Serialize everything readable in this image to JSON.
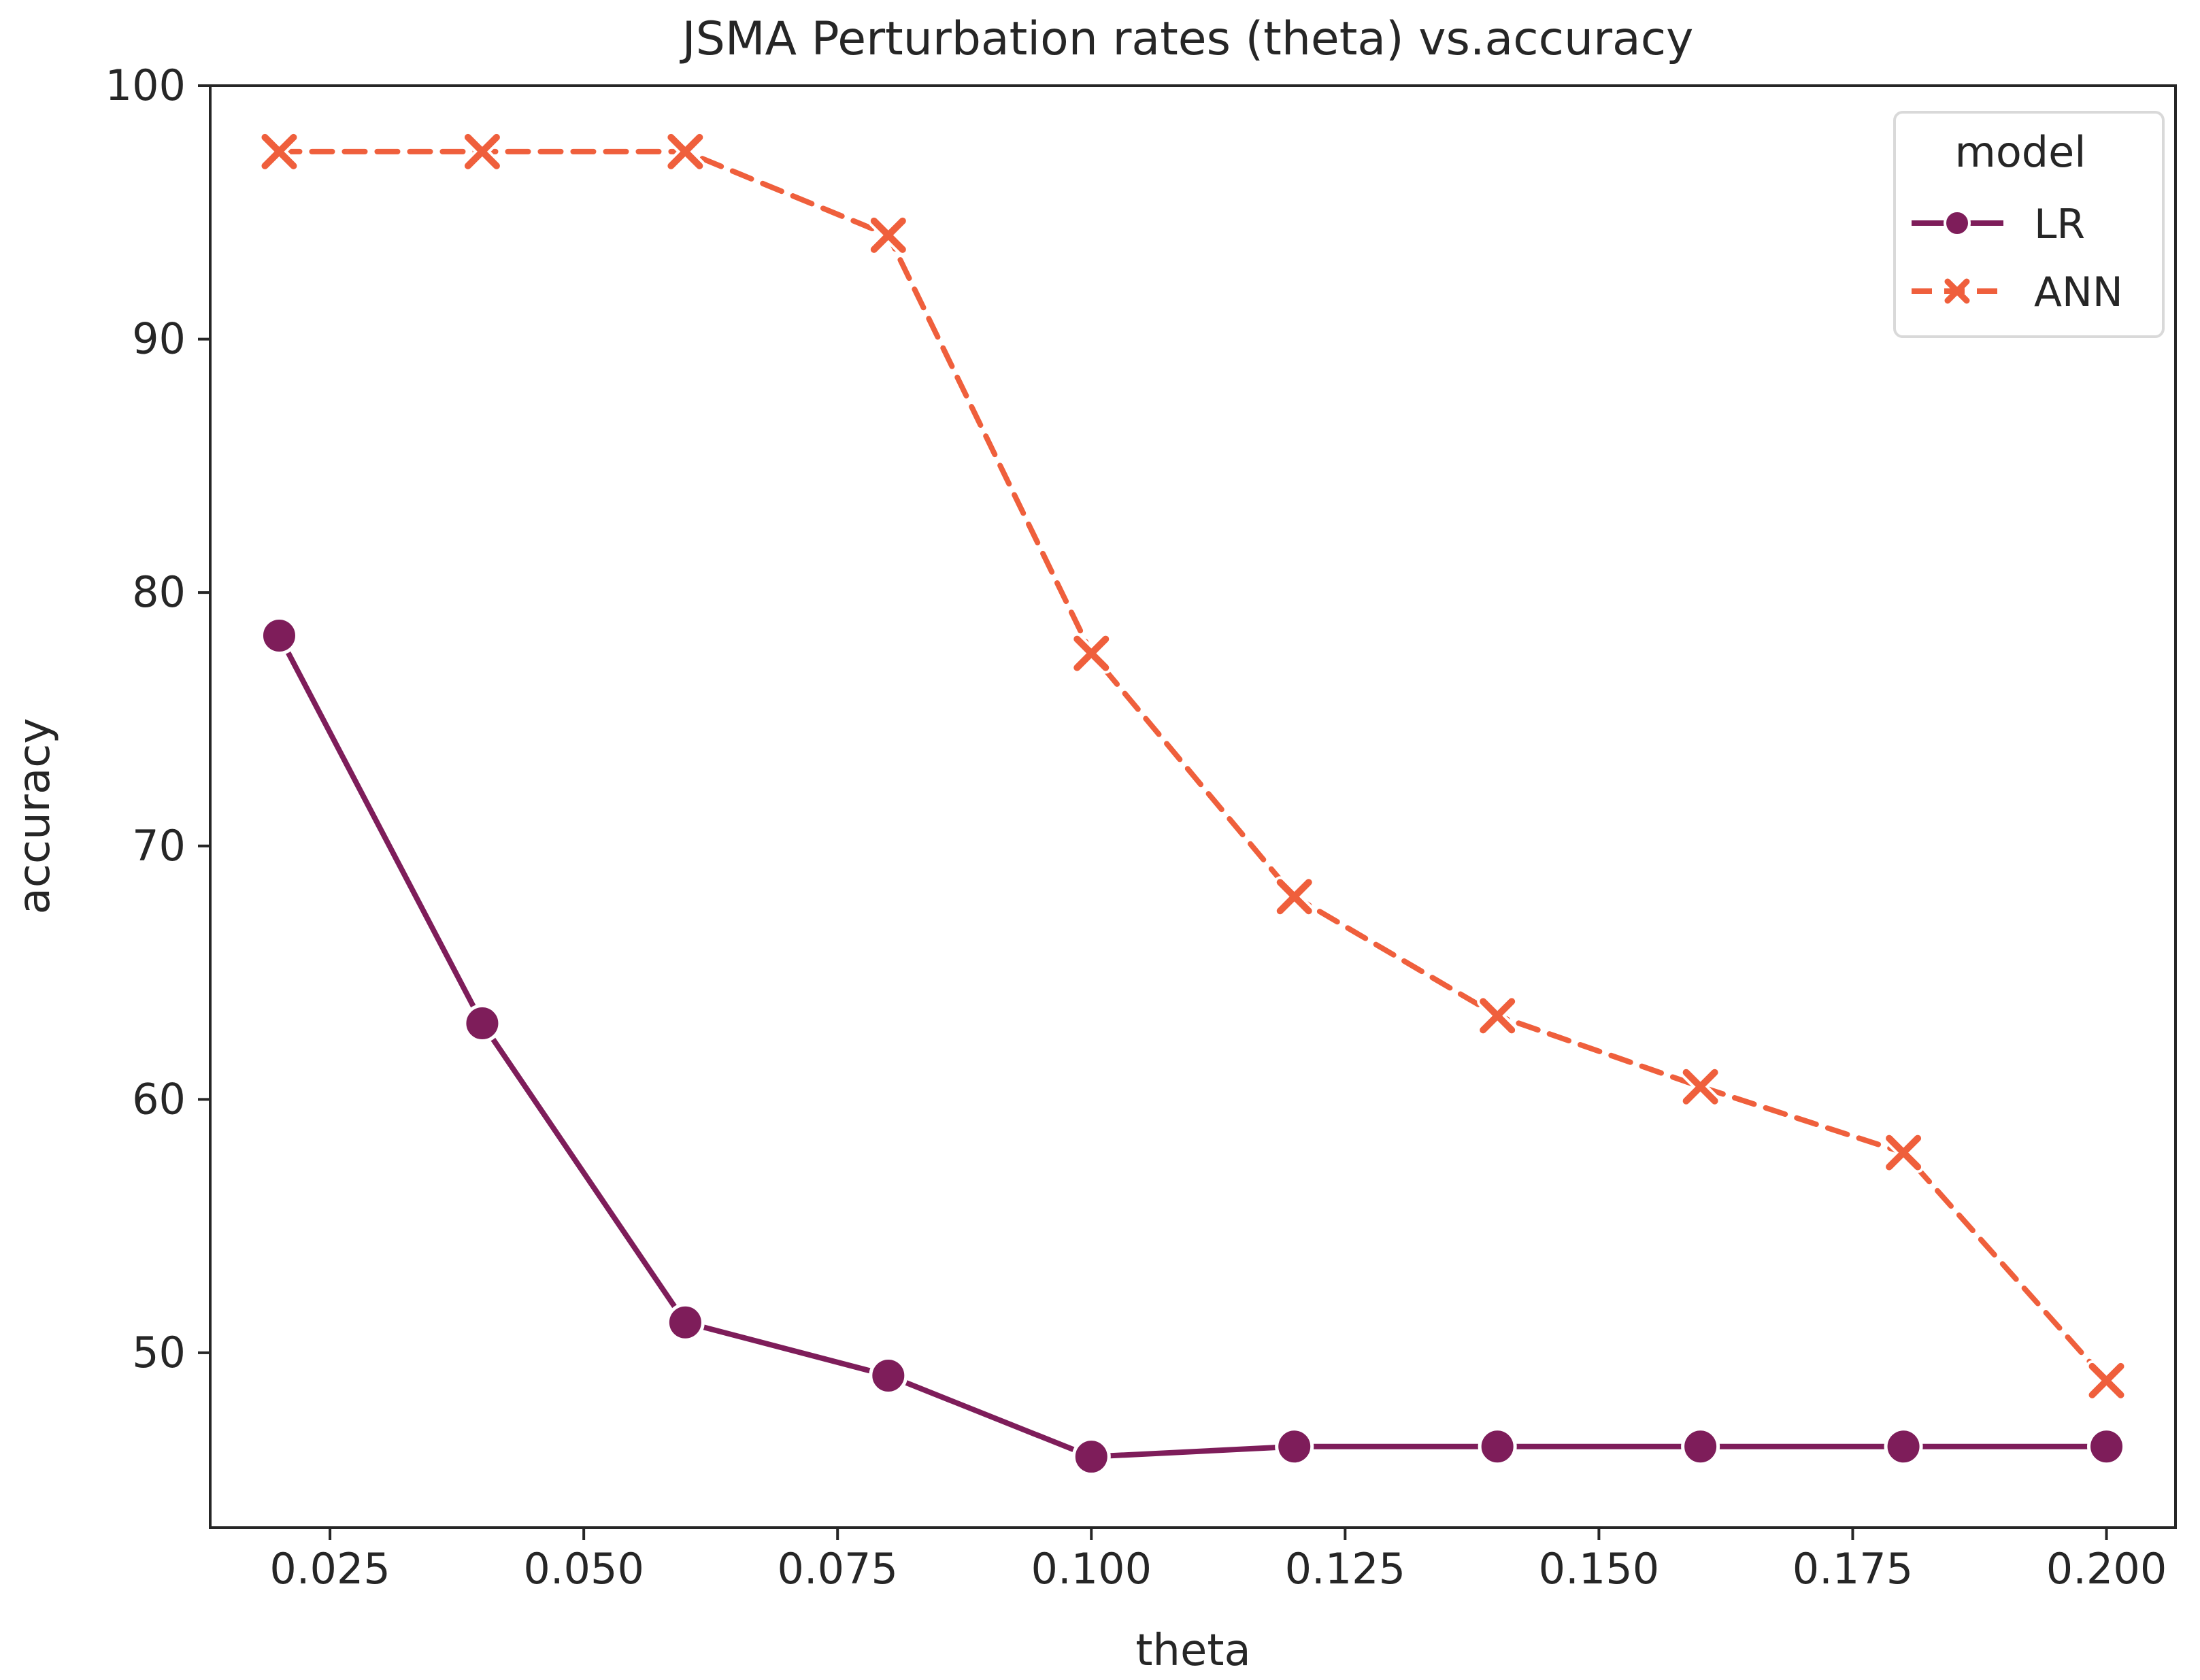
{
  "chart_data": {
    "type": "line",
    "title": "JSMA Perturbation rates (theta) vs.accuracy",
    "xlabel": "theta",
    "ylabel": "accuracy",
    "xlim": [
      0.0132,
      0.2068
    ],
    "ylim": [
      43.1,
      100
    ],
    "xticks": [
      "0.025",
      "0.050",
      "0.075",
      "0.100",
      "0.125",
      "0.150",
      "0.175",
      "0.200"
    ],
    "yticks": [
      "50",
      "60",
      "70",
      "80",
      "90",
      "100"
    ],
    "x": [
      0.02,
      0.04,
      0.06,
      0.08,
      0.1,
      0.12,
      0.14,
      0.16,
      0.18,
      0.2
    ],
    "series": [
      {
        "name": "LR",
        "values": [
          78.3,
          63.0,
          51.2,
          49.1,
          45.9,
          46.3,
          46.3,
          46.3,
          46.3,
          46.3
        ],
        "color": "#7e1d5a",
        "marker": "circle",
        "line_style": "solid"
      },
      {
        "name": "ANN",
        "values": [
          97.4,
          97.4,
          97.4,
          94.1,
          77.6,
          68.0,
          63.3,
          60.5,
          57.9,
          48.9
        ],
        "color": "#ef5f3c",
        "marker": "x",
        "line_style": "dashed"
      }
    ],
    "legend": {
      "title": "model",
      "position": "top-right"
    },
    "grid": false
  }
}
